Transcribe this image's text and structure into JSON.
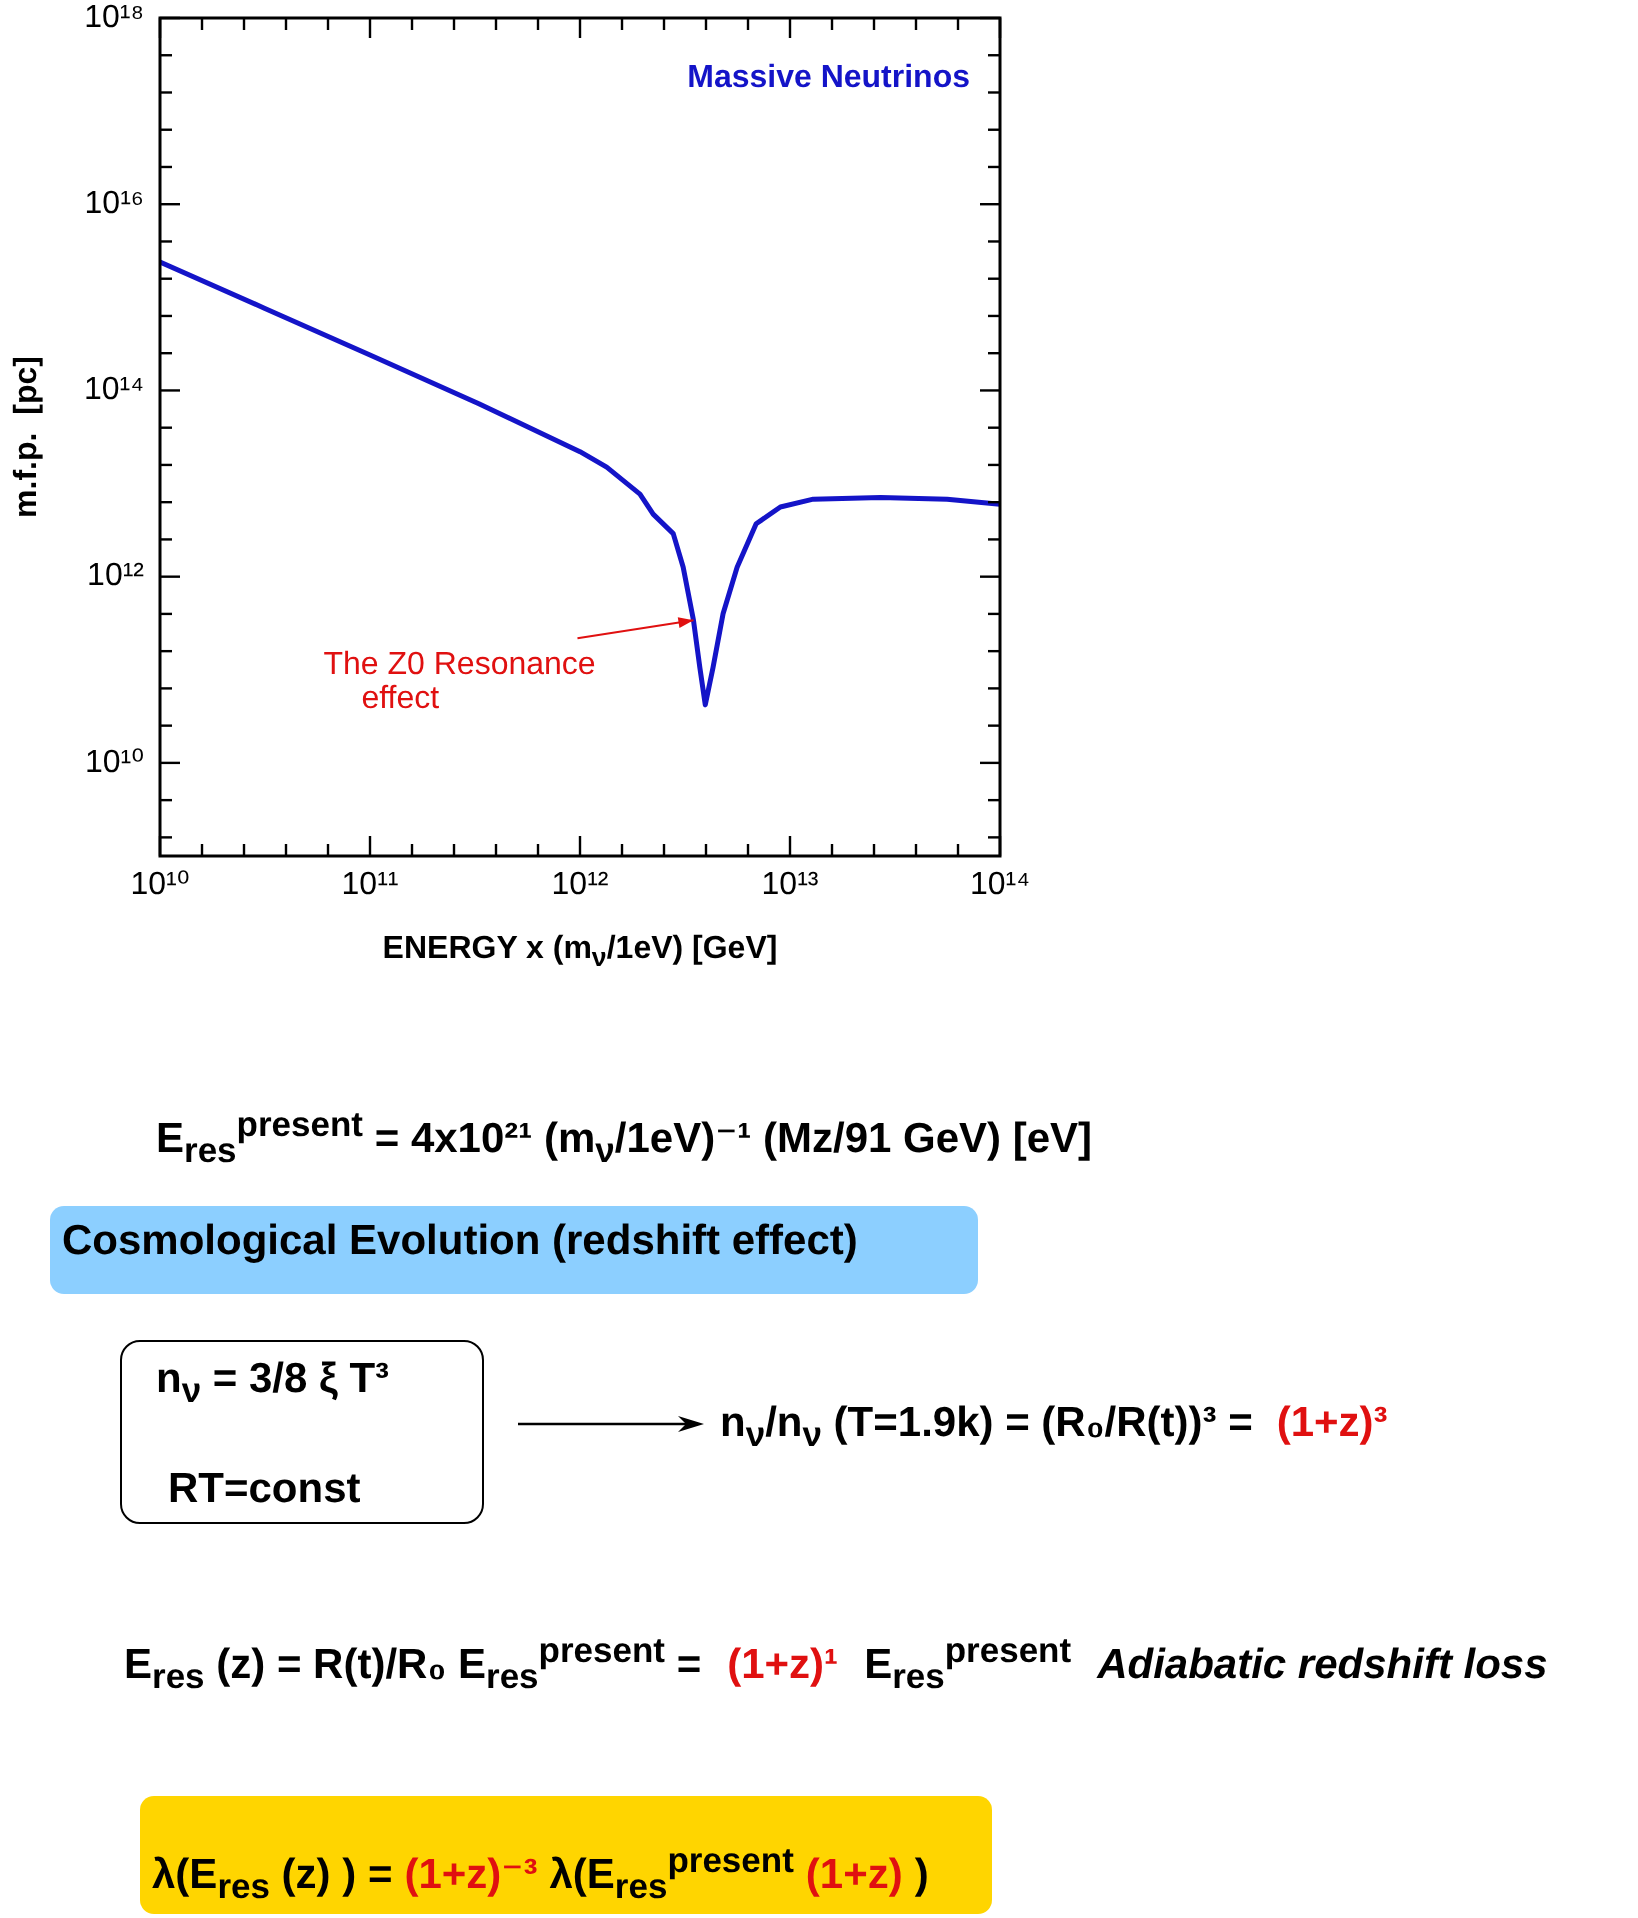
{
  "chart_data": {
    "type": "line",
    "log": "xy",
    "legend": "top right",
    "xlabel": "ENERGY x (m$_{ν}$/1eV)  [GeV]",
    "ylabel": "m.f.p.  [pc]",
    "xlim": [
      10000000000.0,
      100000000000000.0
    ],
    "ylim": [
      1000000000.0,
      1e+18
    ],
    "xticks": [
      {
        "value": 10000000000.0,
        "label": "10¹⁰"
      },
      {
        "value": 15850000000.0,
        "label": null
      },
      {
        "value": 25120000000.0,
        "label": null
      },
      {
        "value": 39810000000.0,
        "label": null
      },
      {
        "value": 63100000000.0,
        "label": null
      },
      {
        "value": 100000000000.0,
        "label": "10¹¹"
      },
      {
        "value": 158500000000.0,
        "label": null
      },
      {
        "value": 251200000000.0,
        "label": null
      },
      {
        "value": 398100000000.0,
        "label": null
      },
      {
        "value": 631000000000.0,
        "label": null
      },
      {
        "value": 1000000000000.0,
        "label": "10¹²"
      },
      {
        "value": 1585000000000.0,
        "label": null
      },
      {
        "value": 2512000000000.0,
        "label": null
      },
      {
        "value": 3981000000000.0,
        "label": null
      },
      {
        "value": 6310000000000.0,
        "label": null
      },
      {
        "value": 10000000000000.0,
        "label": "10¹³"
      },
      {
        "value": 15850000000000.0,
        "label": null
      },
      {
        "value": 25120000000000.0,
        "label": null
      },
      {
        "value": 39810000000000.0,
        "label": null
      },
      {
        "value": 63100000000000.0,
        "label": null
      },
      {
        "value": 100000000000000.0,
        "label": "10¹⁴"
      }
    ],
    "yticks": [
      {
        "value": 1585000000.0,
        "label": null
      },
      {
        "value": 3981000000.0,
        "label": null
      },
      {
        "value": 10000000000.0,
        "label": "10¹⁰"
      },
      {
        "value": 25120000000.0,
        "label": null
      },
      {
        "value": 63100000000.0,
        "label": null
      },
      {
        "value": 158500000000.0,
        "label": null
      },
      {
        "value": 398100000000.0,
        "label": null
      },
      {
        "value": 1000000000000.0,
        "label": "10¹²"
      },
      {
        "value": 2512000000000.0,
        "label": null
      },
      {
        "value": 6310000000000.0,
        "label": null
      },
      {
        "value": 15850000000000.0,
        "label": null
      },
      {
        "value": 39810000000000.0,
        "label": null
      },
      {
        "value": 100000000000000.0,
        "label": "10¹⁴"
      },
      {
        "value": 251200000000000.0,
        "label": null
      },
      {
        "value": 631000000000000.0,
        "label": null
      },
      {
        "value": 1585000000000000.0,
        "label": null
      },
      {
        "value": 3981000000000000.0,
        "label": null
      },
      {
        "value": 1e+16,
        "label": "10¹⁶"
      },
      {
        "value": 2.512e+16,
        "label": null
      },
      {
        "value": 6.31e+16,
        "label": null
      },
      {
        "value": 1.585e+17,
        "label": null
      },
      {
        "value": 3.981e+17,
        "label": null
      },
      {
        "value": 1e+18,
        "label": "10¹⁸"
      }
    ],
    "x": [
      10000000000.0,
      31600000000.0,
      100000000000.0,
      330000000000.0,
      1000000000000.0,
      1340000000000.0,
      1930000000000.0,
      2230000000000.0,
      2780000000000.0,
      3100000000000.0,
      3470000000000.0,
      3720000000000.0,
      3950000000000.0,
      4300000000000.0,
      4800000000000.0,
      5600000000000.0,
      6900000000000.0,
      9000000000000.0,
      12900000000000.0,
      27000000000000.0,
      56000000000000.0,
      100000000000000.0
    ],
    "series": [
      {
        "name": "Massive Neutrinos",
        "color": "#1414c8",
        "values": [
          2400000000000000.0,
          760000000000000.0,
          240000000000000.0,
          72000000000000.0,
          22000000000000.0,
          15000000000000.0,
          7700000000000.0,
          4700000000000.0,
          2900000000000.0,
          1260000000000.0,
          340000000000.0,
          106000000000.0,
          42000000000.0,
          106000000000.0,
          400000000000.0,
          1260000000000.0,
          3700000000000.0,
          5600000000000.0,
          6800000000000.0,
          7100000000000.0,
          6800000000000.0,
          6000000000000.0
        ]
      }
    ],
    "annotations": [
      {
        "text": "The Z0 Resonance effect",
        "x": 3470000000000.0,
        "y": 340000000000.0
      },
      "E$_{res}$$^{present}$ = 4x10²¹ (m$_{ν}$/1eV)⁻¹ (Mz/91 GeV) [eV]",
      "Cosmological Evolution (redshift effect)",
      "n$_{ν}$ = 3/8 ξ T³",
      "RT=const",
      "n$_{ν}$/n$_{ν}$ (T=1.9k) = (R₀/R(t))³ =",
      "(1+z)³",
      "E$_{res}$ (z) = R(t)/R₀ E$_{res}$$^{present}$ =",
      "(1+z)¹",
      "E$_{res}$$^{present}$",
      "Adiabatic redshift loss",
      "λ(E$_{res}$ (z) ) =",
      "(1+z)⁻³",
      "λ(E$_{res}$$^{present}$",
      "(1+z)",
      ")"
    ]
  }
}
